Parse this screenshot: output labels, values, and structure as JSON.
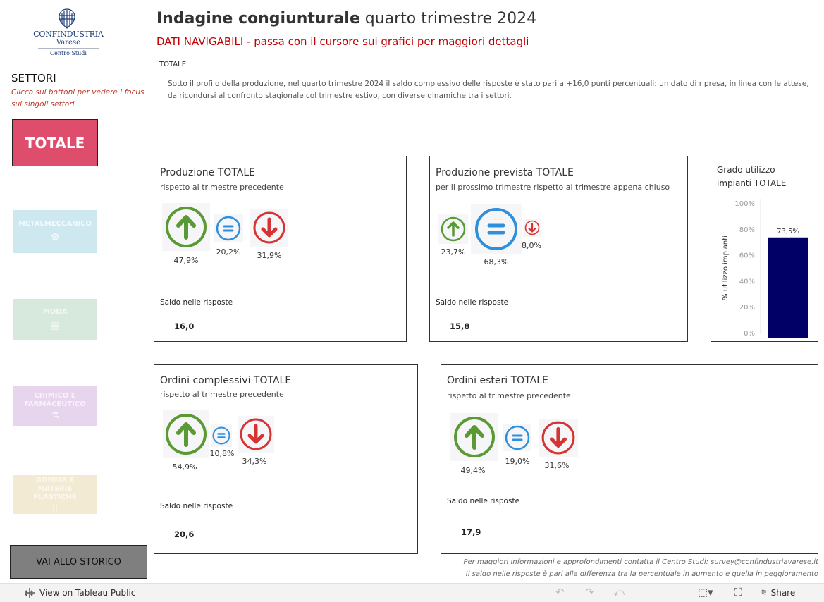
{
  "logo": {
    "name": "CONFINDUSTRIA",
    "city": "Varese",
    "sub": "Centro Studi"
  },
  "header": {
    "title_bold": "Indagine congiunturale",
    "title_rest": " quarto trimestre 2024",
    "subtitle": "DATI NAVIGABILI - passa con il cursore sui grafici per maggiori dettagli",
    "section": "TOTALE",
    "description": "Sotto il profilo della produzione, nel quarto trimestre 2024 il saldo complessivo delle risposte è stato pari a +16,0 punti percentuali: un dato di ripresa, in linea con le attese, da ricondursi al confronto stagionale col trimestre estivo, con diverse dinamiche tra i settori."
  },
  "sidebar": {
    "title": "SETTORI",
    "hint": "Clicca sui bottoni per vedere i focus sui singoli settori",
    "buttons": {
      "totale": "TOTALE",
      "metal": "METALMECCANICO",
      "moda": "MODA",
      "chimico": "CHIMICO E FARMACEUTICO",
      "gomma": "GOMMA E MATERIE PLASTICHE"
    },
    "storico": "VAI ALLO STORICO"
  },
  "panels": {
    "produzione": {
      "title": "Produzione TOTALE",
      "subtitle": "rispetto al trimestre precedente",
      "up": "47,9%",
      "eq": "20,2%",
      "down": "31,9%",
      "saldo_label": "Saldo nelle risposte",
      "saldo": "16,0"
    },
    "prevista": {
      "title": "Produzione prevista  TOTALE",
      "subtitle": "per il prossimo trimestre rispetto al trimestre appena chiuso",
      "up": "23,7%",
      "eq": "68,3%",
      "down": "8,0%",
      "saldo_label": "Saldo nelle risposte",
      "saldo": "15,8"
    },
    "ordini": {
      "title": "Ordini complessivi TOTALE",
      "subtitle": "rispetto al trimestre precedente",
      "up": "54,9%",
      "eq": "10,8%",
      "down": "34,3%",
      "saldo_label": "Saldo nelle risposte",
      "saldo": "20,6"
    },
    "esteri": {
      "title": "Ordini esteri TOTALE",
      "subtitle": "rispetto al trimestre precedente",
      "up": "49,4%",
      "eq": "19,0%",
      "down": "31,6%",
      "saldo_label": "Saldo nelle risposte",
      "saldo": "17,9"
    }
  },
  "grado": {
    "title_line1": "Grado utilizzo",
    "title_line2": "impianti TOTALE"
  },
  "chart_data": {
    "type": "bar",
    "title": "Grado utilizzo impianti TOTALE",
    "ylabel": "% utilizzo impianti",
    "categories": [
      ""
    ],
    "values": [
      73.5
    ],
    "value_labels": [
      "73,5%"
    ],
    "yticks": [
      "100%",
      "80%",
      "60%",
      "40%",
      "20%",
      "0%"
    ],
    "ylim": [
      0,
      100
    ],
    "grid": false,
    "bar_color": "#000066"
  },
  "footer": {
    "note1": "Per maggiori informazioni e approfondimenti contatta il Centro Studi: survey@confindustriavarese.it",
    "note2": "Il saldo nelle risposte è pari alla differenza tra la percentuale in aumento e quella in peggioramento"
  },
  "toolbar": {
    "view_label": "View on Tableau Public",
    "share_label": "Share"
  },
  "colors": {
    "up": "#5a9a35",
    "eq": "#2e8fdd",
    "down": "#d63434",
    "accent": "#c00000"
  }
}
